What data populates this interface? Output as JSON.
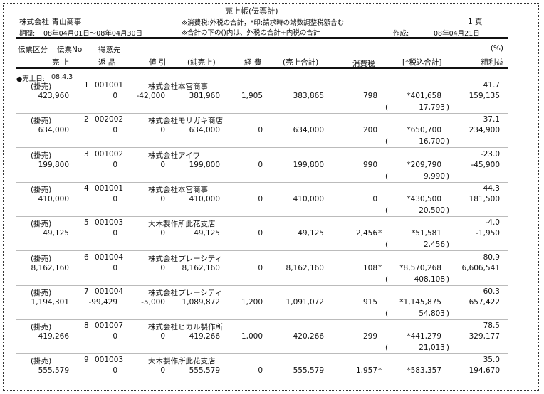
{
  "report": {
    "title": "売上帳(伝票計)",
    "company": "株式会社 青山商事",
    "period_label": "期間:",
    "period": "08年04月01日～08年04月30日",
    "note1": "※消費税:外税の合計，*印:請求時の端数調整税額含む",
    "note2": "※合計の下の()内は、外税の合計+内税の合計",
    "page": "1 頁",
    "created_label": "作成:",
    "created": "08年04月21日"
  },
  "columns": {
    "row1": {
      "type": "伝票区分",
      "no": "伝票No",
      "customer": "得意先",
      "pct": "(%)"
    },
    "row2": {
      "sales": "売 上",
      "returns": "返 品",
      "discount": "値 引",
      "net": "(純売上)",
      "expense": "経 費",
      "total": "(売上合計)",
      "tax": "消費税",
      "taxed_total": "[*税込合計]",
      "profit": "粗利益"
    }
  },
  "section": {
    "label": "●売上日:",
    "date": "08.4.3"
  },
  "records": [
    {
      "type": "(掛売)",
      "no": "1",
      "code": "001001",
      "customer": "株式会社本宮商事",
      "pct": "41.7",
      "sales": "423,960",
      "returns": "0",
      "discount": "-42,000",
      "net": "381,960",
      "expense": "1,905",
      "total": "383,865",
      "tax": "798",
      "tax_mark": "",
      "taxed_total": "*401,658",
      "profit": "159,135",
      "paren": "17,793"
    },
    {
      "type": "(掛売)",
      "no": "2",
      "code": "002002",
      "customer": "株式会社モリガキ商店",
      "pct": "37.1",
      "sales": "634,000",
      "returns": "0",
      "discount": "0",
      "net": "634,000",
      "expense": "0",
      "total": "634,000",
      "tax": "200",
      "tax_mark": "",
      "taxed_total": "*650,700",
      "profit": "234,900",
      "paren": "16,700"
    },
    {
      "type": "(掛売)",
      "no": "3",
      "code": "001002",
      "customer": "株式会社アイワ",
      "pct": "-23.0",
      "sales": "199,800",
      "returns": "0",
      "discount": "0",
      "net": "199,800",
      "expense": "0",
      "total": "199,800",
      "tax": "990",
      "tax_mark": "",
      "taxed_total": "*209,790",
      "profit": "-45,900",
      "paren": "9,990"
    },
    {
      "type": "(掛売)",
      "no": "4",
      "code": "001001",
      "customer": "株式会社本宮商事",
      "pct": "44.3",
      "sales": "410,000",
      "returns": "0",
      "discount": "0",
      "net": "410,000",
      "expense": "0",
      "total": "410,000",
      "tax": "0",
      "tax_mark": "",
      "taxed_total": "*430,500",
      "profit": "181,500",
      "paren": "20,500"
    },
    {
      "type": "(掛売)",
      "no": "5",
      "code": "001003",
      "customer": "大木製作所此花支店",
      "pct": "-4.0",
      "sales": "49,125",
      "returns": "0",
      "discount": "0",
      "net": "49,125",
      "expense": "0",
      "total": "49,125",
      "tax": "2,456",
      "tax_mark": "*",
      "taxed_total": "*51,581",
      "profit": "-1,950",
      "paren": "2,456"
    },
    {
      "type": "(掛売)",
      "no": "6",
      "code": "001004",
      "customer": "株式会社プレーシティ",
      "pct": "80.9",
      "sales": "8,162,160",
      "returns": "0",
      "discount": "0",
      "net": "8,162,160",
      "expense": "0",
      "total": "8,162,160",
      "tax": "108",
      "tax_mark": "*",
      "taxed_total": "*8,570,268",
      "profit": "6,606,541",
      "paren": "408,108"
    },
    {
      "type": "(掛売)",
      "no": "7",
      "code": "001004",
      "customer": "株式会社プレーシティ",
      "pct": "60.3",
      "sales": "1,194,301",
      "returns": "-99,429",
      "discount": "-5,000",
      "net": "1,089,872",
      "expense": "1,200",
      "total": "1,091,072",
      "tax": "915",
      "tax_mark": "",
      "taxed_total": "*1,145,875",
      "profit": "657,422",
      "paren": "54,803"
    },
    {
      "type": "(掛売)",
      "no": "8",
      "code": "001007",
      "customer": "株式会社ヒカル製作所",
      "pct": "78.5",
      "sales": "419,266",
      "returns": "0",
      "discount": "0",
      "net": "419,266",
      "expense": "1,000",
      "total": "420,266",
      "tax": "299",
      "tax_mark": "",
      "taxed_total": "*441,279",
      "profit": "329,177",
      "paren": "21,013"
    },
    {
      "type": "(掛売)",
      "no": "9",
      "code": "001003",
      "customer": "大木製作所此花支店",
      "pct": "35.0",
      "sales": "555,579",
      "returns": "0",
      "discount": "0",
      "net": "555,579",
      "expense": "0",
      "total": "555,579",
      "tax": "1,957",
      "tax_mark": "*",
      "taxed_total": "*583,357",
      "profit": "194,670",
      "paren": ""
    }
  ]
}
